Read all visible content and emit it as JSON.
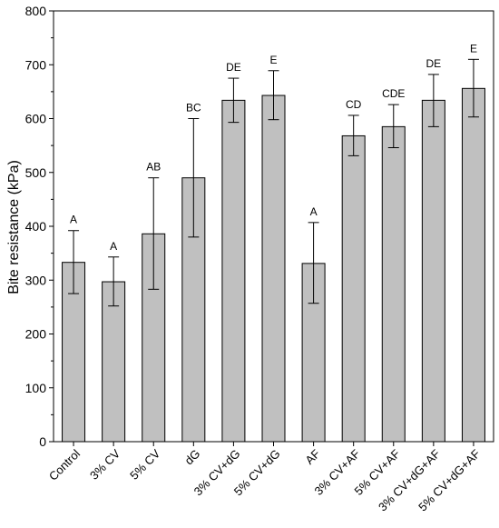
{
  "chart_data": {
    "type": "bar",
    "title": "",
    "xlabel": "",
    "ylabel": "Bite resistance (kPa)",
    "ylim": [
      0,
      800
    ],
    "yticks": [
      0,
      100,
      200,
      300,
      400,
      500,
      600,
      700,
      800
    ],
    "grid": false,
    "legend": "none",
    "bar_color": "#c0c0c0",
    "categories": [
      "Control",
      "3% CV",
      "5% CV",
      "dG",
      "3% CV+dG",
      "5% CV+dG",
      "AF",
      "3% CV+AF",
      "5% CV+AF",
      "3% CV+dG+AF",
      "5% CV+dG+AF"
    ],
    "values": [
      333,
      297,
      386,
      490,
      634,
      643,
      331,
      568,
      585,
      634,
      656
    ],
    "error_upper": [
      392,
      343,
      490,
      600,
      675,
      689,
      407,
      606,
      626,
      682,
      710
    ],
    "error_lower": [
      275,
      252,
      283,
      380,
      593,
      598,
      257,
      531,
      546,
      585,
      603
    ],
    "group_labels": [
      "A",
      "A",
      "AB",
      "BC",
      "DE",
      "E",
      "A",
      "CD",
      "CDE",
      "DE",
      "E"
    ]
  }
}
